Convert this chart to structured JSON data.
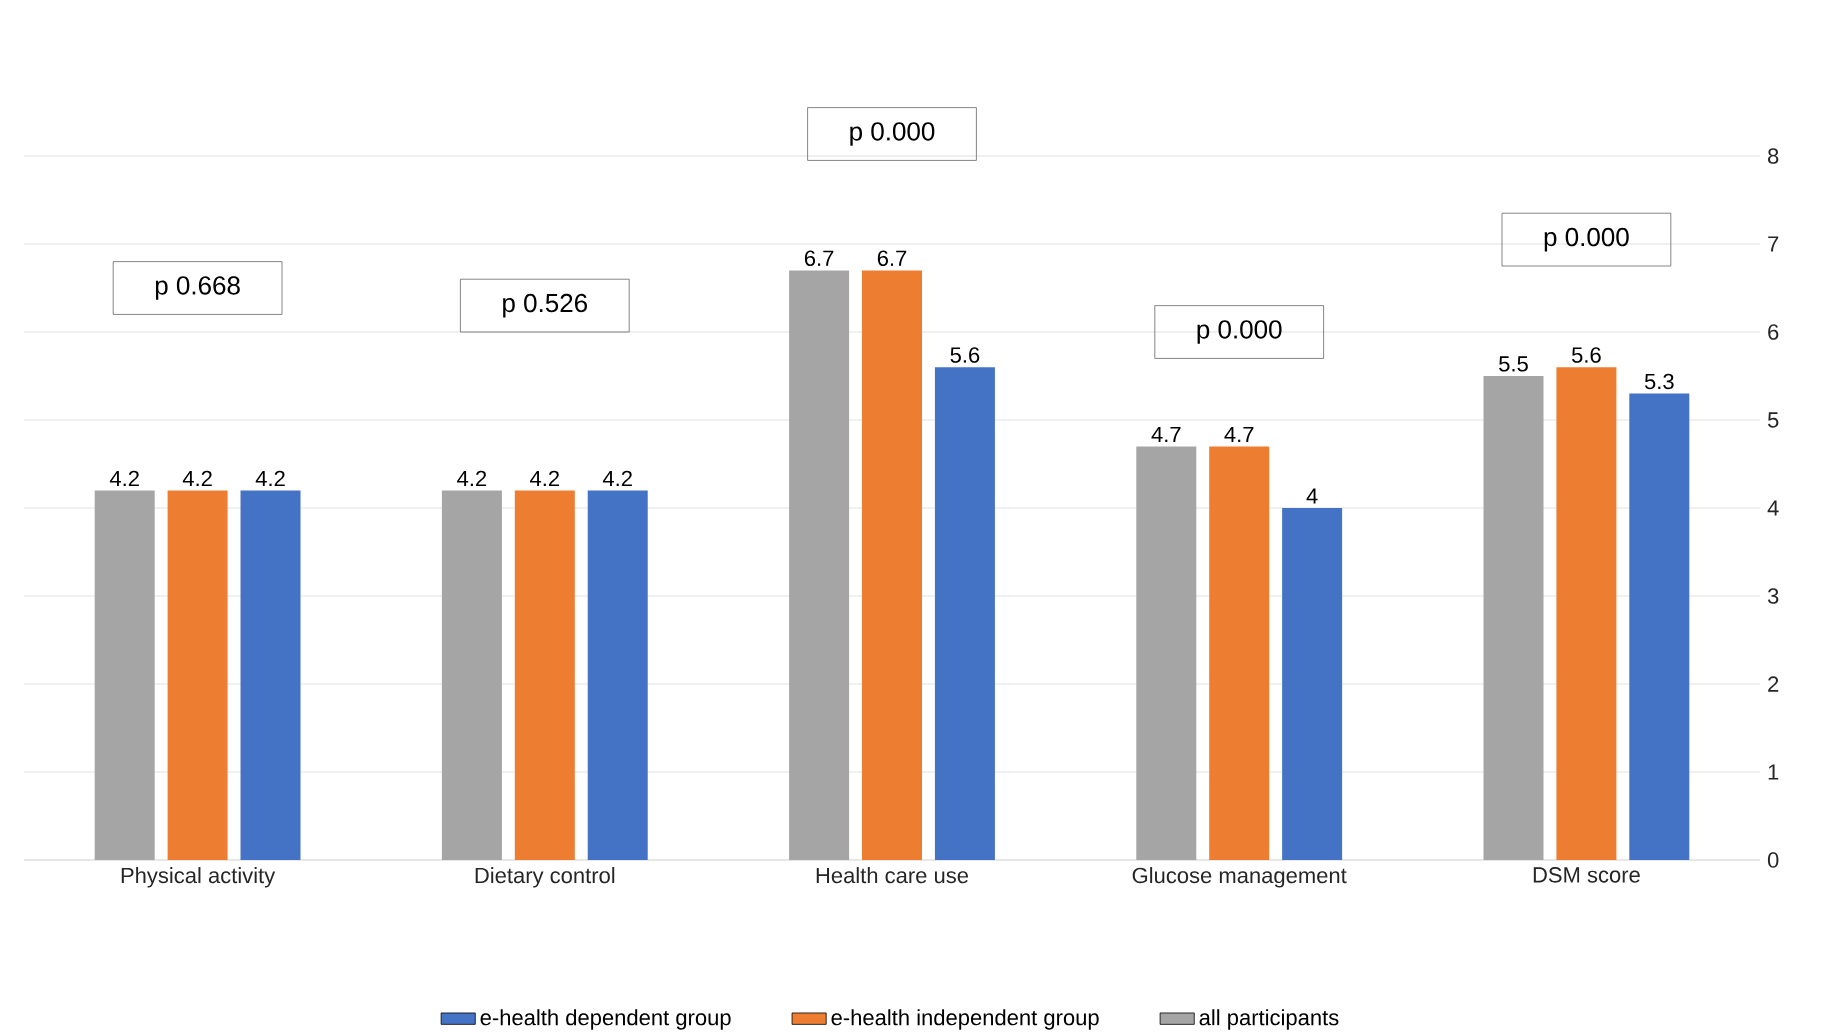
{
  "chart_data": {
    "type": "bar",
    "categories": [
      "Physical activity",
      "Dietary control",
      "Health care use",
      "Glucose management",
      "DSM score"
    ],
    "series": [
      {
        "name": "all participants",
        "color": "#a5a5a5",
        "values": [
          4.2,
          4.2,
          6.7,
          4.7,
          5.5
        ]
      },
      {
        "name": "e-health independent group",
        "color": "#ed7d31",
        "values": [
          4.2,
          4.2,
          6.7,
          4.7,
          5.6
        ]
      },
      {
        "name": "e-health dependent group",
        "color": "#4472c4",
        "values": [
          4.2,
          4.2,
          5.6,
          4,
          5.3
        ]
      }
    ],
    "ylim": [
      0,
      8
    ],
    "yticks": [
      0,
      1,
      2,
      3,
      4,
      5,
      6,
      7,
      8
    ],
    "grid": "y",
    "data_labels": true,
    "legend": "bottom",
    "annotations": [
      "p 0.668",
      "p 0.526",
      "p 0.000",
      "p 0.000",
      "p 0.000"
    ]
  }
}
